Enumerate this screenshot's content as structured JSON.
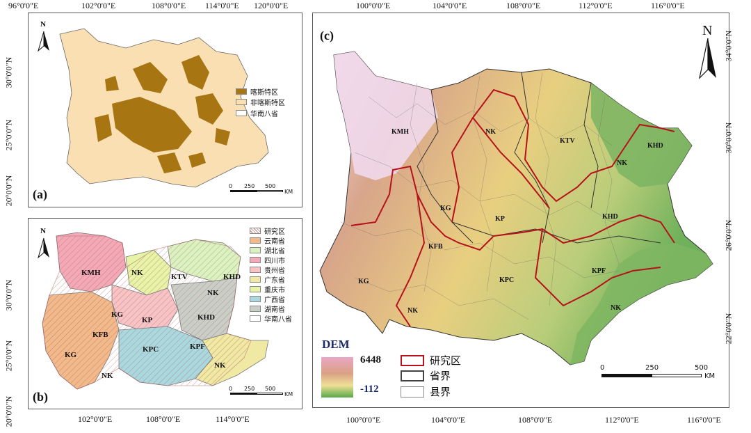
{
  "panel_a": {
    "label": "(a)",
    "top_ticks": [
      "96°0'0\"E",
      "102°0'0\"E",
      "108°0'0\"E",
      "114°0'0\"E",
      "120°0'0\"E"
    ],
    "left_ticks": [
      "30°0'0\"N",
      "25°0'0\"N",
      "20°0'0\"N"
    ],
    "north": "N",
    "legend": [
      {
        "label": "喀斯特区",
        "color": "#a87513"
      },
      {
        "label": "非喀斯特区",
        "color": "#f9dfb1"
      },
      {
        "label": "华南八省",
        "color": "#ffffff"
      }
    ],
    "scale": {
      "ticks": [
        "0",
        "250",
        "500"
      ],
      "unit": "KM"
    }
  },
  "panel_b": {
    "label": "(b)",
    "bottom_ticks": [
      "102°0'0\"E",
      "108°0'0\"E",
      "114°0'0\"E"
    ],
    "left_ticks": [
      "30°0'0\"N",
      "25°0'0\"N",
      "20°0'0\"N"
    ],
    "north": "N",
    "legend": [
      {
        "label": "研究区",
        "color": "#ffffff",
        "hatch": true
      },
      {
        "label": "云南省",
        "color": "#f2b98a"
      },
      {
        "label": "湖北省",
        "color": "#d9f2c0"
      },
      {
        "label": "四川市",
        "color": "#f4a9b7"
      },
      {
        "label": "贵州省",
        "color": "#f7c3c5"
      },
      {
        "label": "广东省",
        "color": "#f0e9a4"
      },
      {
        "label": "重庆市",
        "color": "#e7f4a8"
      },
      {
        "label": "广西省",
        "color": "#a9d8df"
      },
      {
        "label": "湖南省",
        "color": "#c9cfc7"
      },
      {
        "label": "华南八省",
        "color": "#ffffff"
      }
    ],
    "regions": [
      "KMH",
      "NK",
      "KTV",
      "KHD",
      "NK",
      "KG",
      "KP",
      "KHD",
      "KFB",
      "KPC",
      "KPF",
      "KG",
      "NK",
      "NK"
    ],
    "scale": {
      "ticks": [
        "0",
        "250",
        "500"
      ],
      "unit": "KM"
    }
  },
  "panel_c": {
    "label": "(c)",
    "top_ticks": [
      "100°0'0\"E",
      "104°0'0\"E",
      "108°0'0\"E",
      "112°0'0\"E",
      "116°0'0\"E"
    ],
    "bottom_ticks": [
      "100°0'0\"E",
      "104°0'0\"E",
      "108°0'0\"E",
      "112°0'0\"E",
      "116°0'0\"E"
    ],
    "right_ticks": [
      "34°0'0\"N",
      "30°0'0\"N",
      "26°0'0\"N",
      "22°0'0\"N"
    ],
    "north": "N",
    "regions": [
      "KMH",
      "NK",
      "KTV",
      "KHD",
      "NK",
      "KG",
      "KP",
      "KHD",
      "KFB",
      "KG",
      "KPC",
      "KPF",
      "NK",
      "NK"
    ],
    "dem": {
      "title": "DEM",
      "max": "6448",
      "min": "-112"
    },
    "boundary_legend": [
      {
        "label": "研究区",
        "color": "#b5121b"
      },
      {
        "label": "省界",
        "color": "#444444"
      },
      {
        "label": "县界",
        "color": "#888888"
      }
    ],
    "scale": {
      "ticks": [
        "0",
        "250",
        "500"
      ],
      "unit": "KM"
    }
  }
}
